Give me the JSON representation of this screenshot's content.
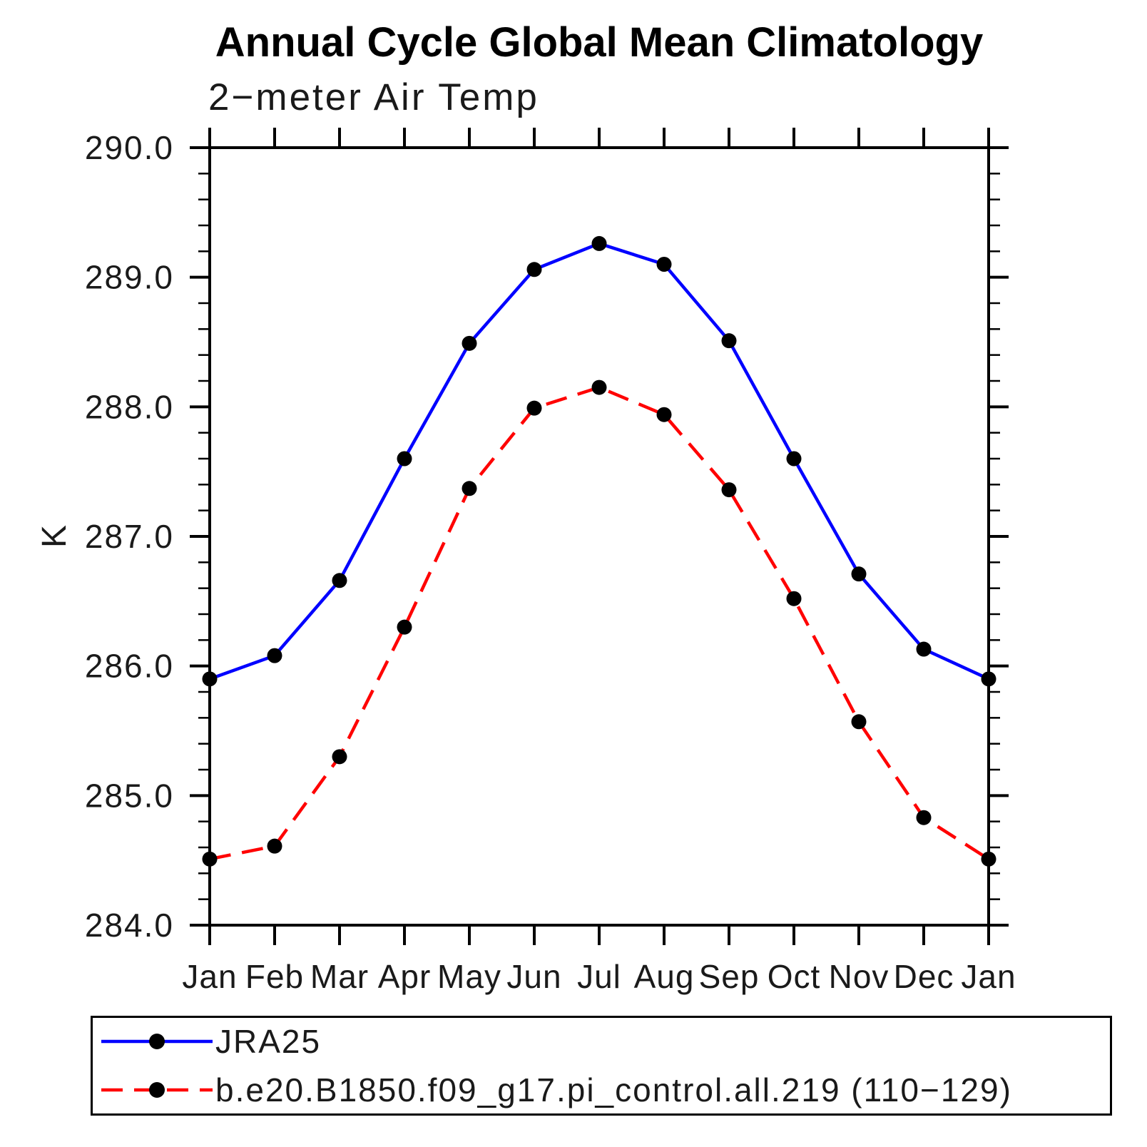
{
  "title": "Annual Cycle Global Mean Climatology",
  "subtitle": "2−meter Air Temp",
  "chart_data": {
    "type": "line",
    "title": "Annual Cycle Global Mean Climatology",
    "subtitle": "2−meter Air Temp",
    "xlabel": "",
    "ylabel": "K",
    "x_categories": [
      "Jan",
      "Feb",
      "Mar",
      "Apr",
      "May",
      "Jun",
      "Jul",
      "Aug",
      "Sep",
      "Oct",
      "Nov",
      "Dec",
      "Jan"
    ],
    "ylim": [
      284.0,
      290.0
    ],
    "y_major_tick_step": 1.0,
    "y_minor_tick_step": 0.2,
    "y_tick_labels": [
      "284.0",
      "285.0",
      "286.0",
      "287.0",
      "288.0",
      "289.0",
      "290.0"
    ],
    "grid": false,
    "legend_position": "bottom-left-box",
    "axis_color": "#000000",
    "marker_color": "#000000",
    "series": [
      {
        "name": "JRA25",
        "color": "#0000ff",
        "line_style": "solid",
        "marker": "circle",
        "values": [
          285.9,
          286.08,
          286.66,
          287.6,
          288.49,
          289.06,
          289.26,
          289.1,
          288.51,
          287.6,
          286.71,
          286.13,
          285.9
        ]
      },
      {
        "name": "b.e20.B1850.f09_g17.pi_control.all.219 (110−129)",
        "color": "#ff0000",
        "line_style": "dashed",
        "marker": "circle",
        "values": [
          284.51,
          284.61,
          285.3,
          286.3,
          287.37,
          287.99,
          288.15,
          287.94,
          287.36,
          286.52,
          285.57,
          284.83,
          284.51
        ]
      }
    ]
  }
}
